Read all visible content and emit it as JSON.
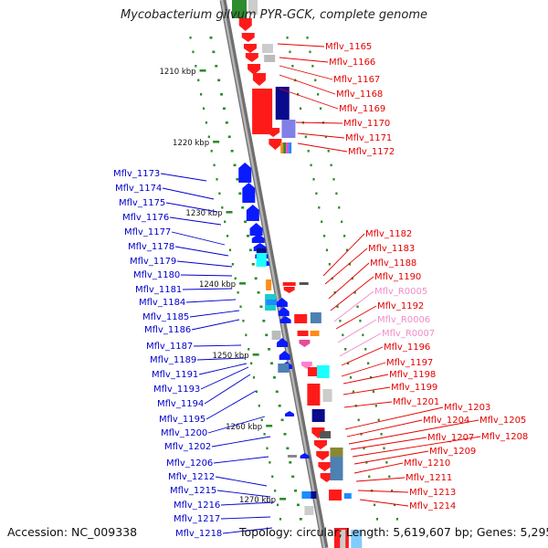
{
  "title": "Mycobacterium gilvum PYR-GCK, complete genome",
  "footer": {
    "accession": "Accession: NC_009338",
    "summary": "Topology: circular; Length: 5,619,607 bp; Genes: 5,295"
  },
  "colors": {
    "forward_label": "#e60000",
    "reverse_label": "#0000cc",
    "rna_label": "#f08cc8",
    "backbone": "#999999",
    "tick": "#2e8b2e"
  },
  "scale_labels": [
    {
      "label": "1210 kbp",
      "kbp": 1210
    },
    {
      "label": "1220 kbp",
      "kbp": 1220
    },
    {
      "label": "1230 kbp",
      "kbp": 1230
    },
    {
      "label": "1240 kbp",
      "kbp": 1240
    },
    {
      "label": "1250 kbp",
      "kbp": 1250
    },
    {
      "label": "1260 kbp",
      "kbp": 1260
    },
    {
      "label": "1270 kbp",
      "kbp": 1270
    }
  ],
  "forward_genes": [
    {
      "label": "Mflv_1165",
      "kind": "cds"
    },
    {
      "label": "Mflv_1166",
      "kind": "cds"
    },
    {
      "label": "Mflv_1167",
      "kind": "cds"
    },
    {
      "label": "Mflv_1168",
      "kind": "cds"
    },
    {
      "label": "Mflv_1169",
      "kind": "cds"
    },
    {
      "label": "Mflv_1170",
      "kind": "cds"
    },
    {
      "label": "Mflv_1171",
      "kind": "cds"
    },
    {
      "label": "Mflv_1172",
      "kind": "cds"
    },
    {
      "label": "Mflv_1182",
      "kind": "cds"
    },
    {
      "label": "Mflv_1183",
      "kind": "cds"
    },
    {
      "label": "Mflv_1188",
      "kind": "cds"
    },
    {
      "label": "Mflv_1190",
      "kind": "cds"
    },
    {
      "label": "Mflv_R0005",
      "kind": "rna"
    },
    {
      "label": "Mflv_1192",
      "kind": "cds"
    },
    {
      "label": "Mflv_R0006",
      "kind": "rna"
    },
    {
      "label": "Mflv_R0007",
      "kind": "rna"
    },
    {
      "label": "Mflv_1196",
      "kind": "cds"
    },
    {
      "label": "Mflv_1197",
      "kind": "cds"
    },
    {
      "label": "Mflv_1198",
      "kind": "cds"
    },
    {
      "label": "Mflv_1199",
      "kind": "cds"
    },
    {
      "label": "Mflv_1201",
      "kind": "cds"
    },
    {
      "label": "Mflv_1203",
      "kind": "cds"
    },
    {
      "label": "Mflv_1204",
      "kind": "cds"
    },
    {
      "label": "Mflv_1205",
      "kind": "cds"
    },
    {
      "label": "Mflv_1207",
      "kind": "cds"
    },
    {
      "label": "Mflv_1208",
      "kind": "cds"
    },
    {
      "label": "Mflv_1209",
      "kind": "cds"
    },
    {
      "label": "Mflv_1210",
      "kind": "cds"
    },
    {
      "label": "Mflv_1211",
      "kind": "cds"
    },
    {
      "label": "Mflv_1213",
      "kind": "cds"
    },
    {
      "label": "Mflv_1214",
      "kind": "cds"
    }
  ],
  "reverse_genes": [
    {
      "label": "Mflv_1173"
    },
    {
      "label": "Mflv_1174"
    },
    {
      "label": "Mflv_1175"
    },
    {
      "label": "Mflv_1176"
    },
    {
      "label": "Mflv_1177"
    },
    {
      "label": "Mflv_1178"
    },
    {
      "label": "Mflv_1179"
    },
    {
      "label": "Mflv_1180"
    },
    {
      "label": "Mflv_1181"
    },
    {
      "label": "Mflv_1184"
    },
    {
      "label": "Mflv_1185"
    },
    {
      "label": "Mflv_1186"
    },
    {
      "label": "Mflv_1187"
    },
    {
      "label": "Mflv_1189"
    },
    {
      "label": "Mflv_1191"
    },
    {
      "label": "Mflv_1193"
    },
    {
      "label": "Mflv_1194"
    },
    {
      "label": "Mflv_1195"
    },
    {
      "label": "Mflv_1200"
    },
    {
      "label": "Mflv_1202"
    },
    {
      "label": "Mflv_1206"
    },
    {
      "label": "Mflv_1212"
    },
    {
      "label": "Mflv_1215"
    },
    {
      "label": "Mflv_1216"
    },
    {
      "label": "Mflv_1217"
    },
    {
      "label": "Mflv_1218"
    }
  ]
}
